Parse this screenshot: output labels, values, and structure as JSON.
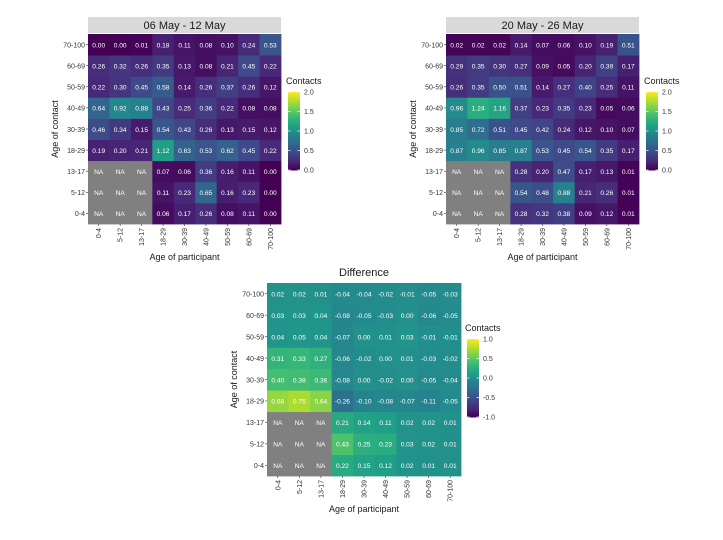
{
  "chart_data": [
    {
      "type": "heatmap",
      "title": "06 May - 12 May",
      "title_style": "strip",
      "xlabel": "Age of participant",
      "ylabel": "Age of contact",
      "x_categories": [
        "0-4",
        "5-12",
        "13-17",
        "18-29",
        "30-39",
        "40-49",
        "50-59",
        "60-69",
        "70-100"
      ],
      "y_categories": [
        "0-4",
        "5-12",
        "13-17",
        "18-29",
        "30-39",
        "40-49",
        "50-59",
        "60-69",
        "70-100"
      ],
      "na_label": "NA",
      "values": [
        [
          null,
          null,
          null,
          0.06,
          0.17,
          0.26,
          0.08,
          0.11,
          0.0
        ],
        [
          null,
          null,
          null,
          0.11,
          0.23,
          0.65,
          0.16,
          0.23,
          0.0
        ],
        [
          null,
          null,
          null,
          0.07,
          0.06,
          0.36,
          0.16,
          0.11,
          0.0
        ],
        [
          0.19,
          0.2,
          0.21,
          1.12,
          0.63,
          0.53,
          0.62,
          0.45,
          0.22
        ],
        [
          0.46,
          0.34,
          0.15,
          0.54,
          0.43,
          0.26,
          0.13,
          0.15,
          0.12
        ],
        [
          0.64,
          0.92,
          0.88,
          0.43,
          0.25,
          0.36,
          0.22,
          0.08,
          0.08
        ],
        [
          0.22,
          0.3,
          0.45,
          0.58,
          0.14,
          0.26,
          0.37,
          0.26,
          0.12
        ],
        [
          0.26,
          0.32,
          0.26,
          0.35,
          0.13,
          0.08,
          0.21,
          0.45,
          0.22
        ],
        [
          0.0,
          0.0,
          0.01,
          0.18,
          0.11,
          0.08,
          0.1,
          0.24,
          0.53
        ]
      ],
      "colorscale": "viridis",
      "legend": {
        "title": "Contacts",
        "range": [
          0,
          2
        ],
        "ticks": [
          "0.0",
          "0.5",
          "1.0",
          "1.5",
          "2.0"
        ]
      }
    },
    {
      "type": "heatmap",
      "title": "20 May - 26 May",
      "title_style": "strip",
      "xlabel": "Age of participant",
      "ylabel": "Age of contact",
      "x_categories": [
        "0-4",
        "5-12",
        "13-17",
        "18-29",
        "30-39",
        "40-49",
        "50-59",
        "60-69",
        "70-100"
      ],
      "y_categories": [
        "0-4",
        "5-12",
        "13-17",
        "18-29",
        "30-39",
        "40-49",
        "50-59",
        "60-69",
        "70-100"
      ],
      "na_label": "NA",
      "values": [
        [
          null,
          null,
          null,
          0.28,
          0.32,
          0.38,
          0.09,
          0.12,
          0.01
        ],
        [
          null,
          null,
          null,
          0.54,
          0.48,
          0.88,
          0.21,
          0.26,
          0.01
        ],
        [
          null,
          null,
          null,
          0.28,
          0.2,
          0.47,
          0.17,
          0.13,
          0.01
        ],
        [
          0.87,
          0.96,
          0.85,
          0.87,
          0.53,
          0.45,
          0.54,
          0.35,
          0.17
        ],
        [
          0.85,
          0.72,
          0.51,
          0.45,
          0.42,
          0.24,
          0.12,
          0.1,
          0.07
        ],
        [
          0.96,
          1.24,
          1.16,
          0.37,
          0.23,
          0.35,
          0.23,
          0.05,
          0.06
        ],
        [
          0.26,
          0.35,
          0.5,
          0.51,
          0.14,
          0.27,
          0.4,
          0.25,
          0.11
        ],
        [
          0.29,
          0.35,
          0.3,
          0.27,
          0.09,
          0.05,
          0.2,
          0.39,
          0.17
        ],
        [
          0.02,
          0.02,
          0.02,
          0.14,
          0.07,
          0.06,
          0.1,
          0.19,
          0.51
        ]
      ],
      "colorscale": "viridis",
      "legend": {
        "title": "Contacts",
        "range": [
          0,
          2
        ],
        "ticks": [
          "0.0",
          "0.5",
          "1.0",
          "1.5",
          "2.0"
        ]
      }
    },
    {
      "type": "heatmap",
      "title": "Difference",
      "title_style": "plain",
      "xlabel": "Age of participant",
      "ylabel": "Age of contact",
      "x_categories": [
        "0-4",
        "5-12",
        "13-17",
        "18-29",
        "30-39",
        "40-49",
        "50-59",
        "60-69",
        "70-100"
      ],
      "y_categories": [
        "0-4",
        "5-12",
        "13-17",
        "18-29",
        "30-39",
        "40-49",
        "50-59",
        "60-69",
        "70-100"
      ],
      "na_label": "NA",
      "values": [
        [
          null,
          null,
          null,
          0.22,
          0.15,
          0.12,
          0.02,
          0.01,
          0.01
        ],
        [
          null,
          null,
          null,
          0.43,
          0.25,
          0.23,
          0.03,
          0.02,
          0.01
        ],
        [
          null,
          null,
          null,
          0.21,
          0.14,
          0.11,
          0.02,
          0.02,
          0.01
        ],
        [
          0.68,
          0.75,
          0.64,
          -0.26,
          -0.1,
          -0.08,
          -0.07,
          -0.11,
          -0.05
        ],
        [
          0.4,
          0.38,
          0.36,
          -0.08,
          0.0,
          -0.02,
          0.0,
          -0.05,
          -0.04
        ],
        [
          0.31,
          0.33,
          0.27,
          -0.06,
          -0.02,
          0.0,
          0.01,
          -0.03,
          -0.02
        ],
        [
          0.04,
          0.05,
          0.04,
          -0.07,
          0.0,
          0.01,
          0.03,
          -0.01,
          -0.01
        ],
        [
          0.03,
          0.03,
          0.04,
          -0.08,
          -0.05,
          -0.03,
          0.0,
          -0.06,
          -0.05
        ],
        [
          0.02,
          0.02,
          0.01,
          -0.04,
          -0.04,
          -0.02,
          -0.01,
          -0.05,
          -0.03
        ]
      ],
      "colorscale": "viridis",
      "legend": {
        "title": "Contacts",
        "range": [
          -1,
          1
        ],
        "ticks": [
          "-1.0",
          "-0.5",
          "0.0",
          "0.5",
          "1.0"
        ]
      }
    }
  ],
  "colors": {
    "na": "#808080",
    "strip": "#d9d9d9",
    "viridis": [
      "#440154",
      "#482878",
      "#3e4989",
      "#31688e",
      "#26828e",
      "#1f9e89",
      "#35b779",
      "#6ece58",
      "#b5de2b",
      "#fde725"
    ]
  }
}
